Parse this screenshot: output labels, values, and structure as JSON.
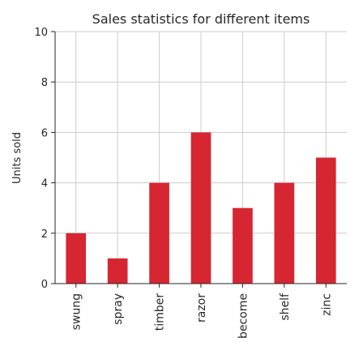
{
  "chart_data": {
    "type": "bar",
    "title": "Sales statistics for different items",
    "xlabel": "",
    "ylabel": "Units sold",
    "categories": [
      "swung",
      "spray",
      "timber",
      "razor",
      "become",
      "shelf",
      "zinc"
    ],
    "values": [
      2,
      1,
      4,
      6,
      3,
      4,
      5
    ],
    "ylim": [
      0,
      10
    ],
    "yticks": [
      "0",
      "2",
      "4",
      "6",
      "8",
      "10"
    ],
    "grid": true,
    "bar_color": "#d62632"
  }
}
